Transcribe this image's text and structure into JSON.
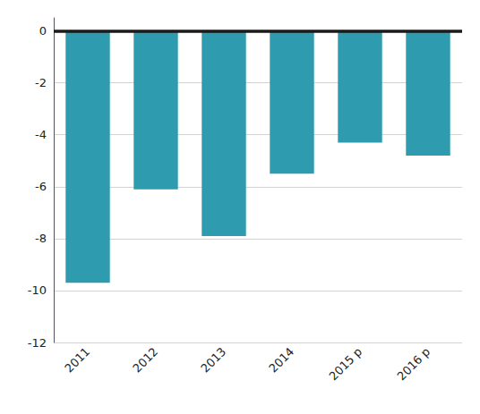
{
  "chart_data": {
    "type": "bar",
    "categories": [
      "2011",
      "2012",
      "2013",
      "2014",
      "2015 p",
      "2016 p"
    ],
    "values": [
      -9.7,
      -6.1,
      -7.9,
      -5.5,
      -4.3,
      -4.8
    ],
    "color": "#2e9bae",
    "ylim": [
      -12,
      0.5
    ],
    "yticks": [
      0,
      -2,
      -4,
      -6,
      -8,
      -10,
      -12
    ],
    "grid": true
  }
}
